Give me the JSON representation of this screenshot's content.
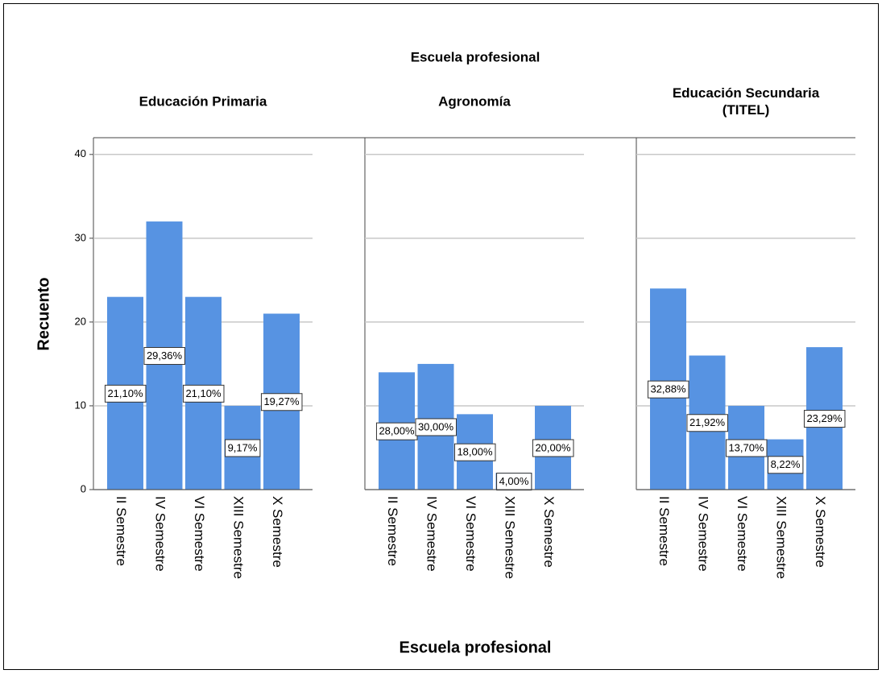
{
  "title": "Escuela profesional",
  "x_label": "Escuela profesional",
  "y_label": "Recuento",
  "chart_data": [
    {
      "type": "bar",
      "title": "Educación Primaria",
      "color": "#5793e2",
      "categories": [
        "II Semestre",
        "IV Semestre",
        "VI Semestre",
        "XIII Semestre",
        "X Semestre"
      ],
      "values": [
        23,
        32,
        23,
        10,
        21
      ],
      "value_labels": [
        "21,10%",
        "29,36%",
        "21,10%",
        "9,17%",
        "19,27%"
      ],
      "ylim": [
        0,
        42
      ],
      "yticks": [
        0,
        10,
        20,
        30,
        40
      ],
      "grid": true
    },
    {
      "type": "bar",
      "title": "Agronomía",
      "color": "#5793e2",
      "categories": [
        "II Semestre",
        "IV Semestre",
        "VI Semestre",
        "XIII Semestre",
        "X Semestre"
      ],
      "values": [
        14,
        15,
        9,
        2,
        10
      ],
      "value_labels": [
        "28,00%",
        "30,00%",
        "18,00%",
        "4,00%",
        "20,00%"
      ],
      "ylim": [
        0,
        42
      ],
      "yticks": [
        0,
        10,
        20,
        30,
        40
      ],
      "grid": true
    },
    {
      "type": "bar",
      "title": "Educación Secundaria (TITEL)",
      "color": "#5793e2",
      "categories": [
        "II Semestre",
        "IV Semestre",
        "VI Semestre",
        "XIII Semestre",
        "X Semestre"
      ],
      "values": [
        24,
        16,
        10,
        6,
        17
      ],
      "value_labels": [
        "32,88%",
        "21,92%",
        "13,70%",
        "8,22%",
        "23,29%"
      ],
      "ylim": [
        0,
        42
      ],
      "yticks": [
        0,
        10,
        20,
        30,
        40
      ],
      "grid": true
    }
  ]
}
